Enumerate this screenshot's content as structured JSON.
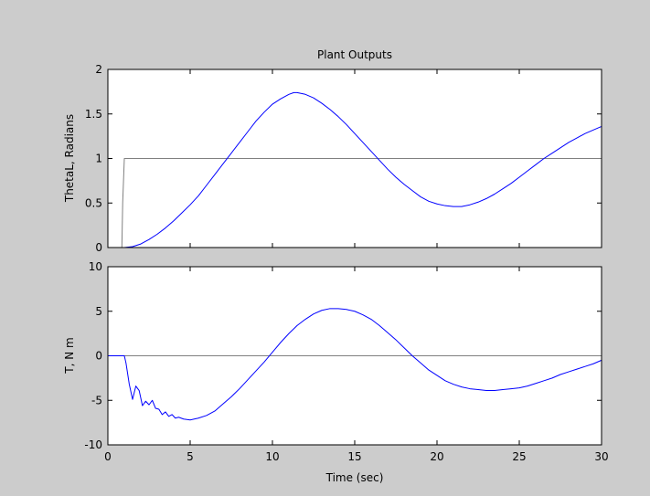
{
  "colors": {
    "figure_background": "#cccccc",
    "axes_background": "#ffffff",
    "response_line": "#0000ff",
    "reference_line": "#808080"
  },
  "chart_data": [
    {
      "type": "line",
      "title": "Plant Outputs",
      "xlabel": "",
      "ylabel": "ThetaL, Radians",
      "xlim": [
        0,
        30
      ],
      "ylim": [
        0,
        2
      ],
      "xticks": [
        0,
        5,
        10,
        15,
        20,
        25,
        30
      ],
      "xtick_labels_shown": false,
      "yticks": [
        0,
        0.5,
        1,
        1.5,
        2
      ],
      "ytick_labels": [
        "0",
        "0.5",
        "1",
        "1.5",
        "2"
      ],
      "grid": false,
      "series": [
        {
          "role": "reference",
          "color": "#808080",
          "x": [
            0,
            0.85,
            0.9,
            1.0,
            30
          ],
          "y": [
            0,
            0,
            0.5,
            1,
            1
          ]
        },
        {
          "role": "response",
          "color": "#0000ff",
          "x": [
            0,
            1,
            1.5,
            2,
            2.5,
            3,
            3.5,
            4,
            4.5,
            5,
            5.5,
            6,
            6.5,
            7,
            7.5,
            8,
            8.5,
            9,
            9.5,
            10,
            10.5,
            11,
            11.3,
            11.5,
            12,
            12.5,
            13,
            13.5,
            14,
            14.5,
            15,
            15.5,
            16,
            16.5,
            17,
            17.5,
            18,
            18.5,
            19,
            19.5,
            20,
            20.5,
            21,
            21.3,
            21.5,
            22,
            22.5,
            23,
            23.5,
            24,
            24.5,
            25,
            25.5,
            26,
            26.5,
            27,
            27.5,
            28,
            28.5,
            29,
            29.5,
            30
          ],
          "y": [
            0,
            0,
            0.01,
            0.04,
            0.09,
            0.15,
            0.22,
            0.3,
            0.39,
            0.48,
            0.58,
            0.7,
            0.82,
            0.94,
            1.06,
            1.18,
            1.3,
            1.42,
            1.52,
            1.61,
            1.67,
            1.72,
            1.74,
            1.74,
            1.72,
            1.68,
            1.62,
            1.55,
            1.47,
            1.38,
            1.28,
            1.18,
            1.08,
            0.98,
            0.88,
            0.79,
            0.71,
            0.64,
            0.57,
            0.52,
            0.49,
            0.47,
            0.46,
            0.46,
            0.46,
            0.48,
            0.51,
            0.55,
            0.6,
            0.66,
            0.72,
            0.79,
            0.86,
            0.93,
            1.0,
            1.06,
            1.12,
            1.18,
            1.23,
            1.28,
            1.32,
            1.36
          ]
        }
      ]
    },
    {
      "type": "line",
      "title": "",
      "xlabel": "Time (sec)",
      "ylabel": "T, N m",
      "xlim": [
        0,
        30
      ],
      "ylim": [
        -10,
        10
      ],
      "xticks": [
        0,
        5,
        10,
        15,
        20,
        25,
        30
      ],
      "xtick_labels": [
        "0",
        "5",
        "10",
        "15",
        "20",
        "25",
        "30"
      ],
      "yticks": [
        -10,
        -5,
        0,
        5,
        10
      ],
      "ytick_labels": [
        "-10",
        "-5",
        "0",
        "5",
        "10"
      ],
      "grid": false,
      "series": [
        {
          "role": "reference",
          "color": "#808080",
          "x": [
            0,
            30
          ],
          "y": [
            0,
            0
          ]
        },
        {
          "role": "response",
          "color": "#0000ff",
          "x": [
            0,
            1,
            1.1,
            1.3,
            1.5,
            1.7,
            1.9,
            2.1,
            2.3,
            2.5,
            2.7,
            2.9,
            3.1,
            3.3,
            3.5,
            3.7,
            3.9,
            4.1,
            4.3,
            4.6,
            5,
            5.5,
            6,
            6.5,
            7,
            7.5,
            8,
            8.5,
            9,
            9.5,
            10,
            10.5,
            11,
            11.5,
            12,
            12.5,
            13,
            13.5,
            14,
            14.5,
            15,
            15.5,
            16,
            16.5,
            17,
            17.5,
            18,
            18.5,
            19,
            19.5,
            20,
            20.5,
            21,
            21.5,
            22,
            22.5,
            23,
            23.5,
            24,
            24.5,
            25,
            25.5,
            26,
            26.5,
            27,
            27.5,
            28,
            28.5,
            29,
            29.5,
            30
          ],
          "y": [
            0,
            0,
            -0.8,
            -3.2,
            -4.9,
            -3.4,
            -3.9,
            -5.6,
            -5.1,
            -5.5,
            -5.0,
            -5.9,
            -6.0,
            -6.6,
            -6.3,
            -6.8,
            -6.6,
            -7.0,
            -6.9,
            -7.1,
            -7.2,
            -7.0,
            -6.7,
            -6.2,
            -5.4,
            -4.6,
            -3.7,
            -2.7,
            -1.7,
            -0.7,
            0.4,
            1.5,
            2.5,
            3.4,
            4.1,
            4.7,
            5.1,
            5.3,
            5.3,
            5.2,
            5.0,
            4.6,
            4.1,
            3.4,
            2.6,
            1.8,
            0.9,
            0.0,
            -0.8,
            -1.6,
            -2.2,
            -2.8,
            -3.2,
            -3.5,
            -3.7,
            -3.8,
            -3.9,
            -3.9,
            -3.8,
            -3.7,
            -3.6,
            -3.4,
            -3.1,
            -2.8,
            -2.5,
            -2.1,
            -1.8,
            -1.5,
            -1.2,
            -0.9,
            -0.5
          ]
        }
      ]
    }
  ]
}
